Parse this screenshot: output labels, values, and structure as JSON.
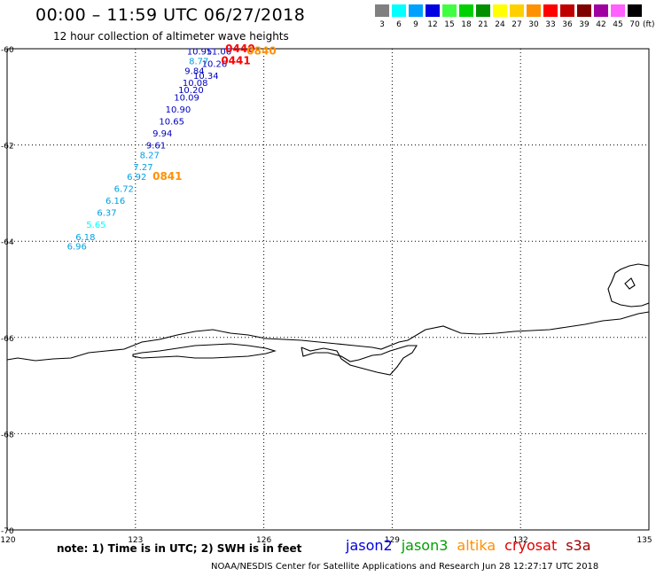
{
  "title": "00:00 – 11:59 UTC 06/27/2018",
  "subtitle": "12 hour collection of altimeter wave heights",
  "color_scale": {
    "unit": "(ft)",
    "swatches": [
      {
        "label": "3",
        "color": "#808080"
      },
      {
        "label": "6",
        "color": "#00ffff"
      },
      {
        "label": "9",
        "color": "#00a0ff"
      },
      {
        "label": "12",
        "color": "#0000e0"
      },
      {
        "label": "15",
        "color": "#40ff40"
      },
      {
        "label": "18",
        "color": "#00d000"
      },
      {
        "label": "21",
        "color": "#009000"
      },
      {
        "label": "24",
        "color": "#ffff00"
      },
      {
        "label": "27",
        "color": "#ffd000"
      },
      {
        "label": "30",
        "color": "#ff9000"
      },
      {
        "label": "33",
        "color": "#ff0000"
      },
      {
        "label": "36",
        "color": "#c00000"
      },
      {
        "label": "39",
        "color": "#800000"
      },
      {
        "label": "42",
        "color": "#a000a0"
      },
      {
        "label": "45",
        "color": "#ff60ff"
      },
      {
        "label": "70",
        "color": "#000000"
      }
    ]
  },
  "map": {
    "lon_range": [
      120,
      135
    ],
    "lat_range": [
      -70,
      -60
    ],
    "lon_labels": [
      "120",
      "123",
      "126",
      "129",
      "132",
      "135"
    ],
    "lat_labels": [
      "-60",
      "-62",
      "-64",
      "-66",
      "-68",
      "-70"
    ],
    "grid_lons": [
      123,
      126,
      129,
      132
    ],
    "grid_lats": [
      -62,
      -64,
      -66,
      -68
    ],
    "wave_heights": [
      {
        "text": "10.95",
        "lon": 124.2,
        "lat": -60.05,
        "color": "#0000c0"
      },
      {
        "text": "11.06",
        "lon": 124.65,
        "lat": -60.05,
        "color": "#0000c0"
      },
      {
        "text": "0440",
        "lon": 125.1,
        "lat": -60.0,
        "color": "#ff0000",
        "time": true
      },
      {
        "text": "0840",
        "lon": 125.6,
        "lat": -60.05,
        "color": "#ff9000",
        "time": true
      },
      {
        "text": "8.77",
        "lon": 124.25,
        "lat": -60.25,
        "color": "#00a0e0"
      },
      {
        "text": "10.26",
        "lon": 124.55,
        "lat": -60.3,
        "color": "#0000c0"
      },
      {
        "text": "0441",
        "lon": 125.0,
        "lat": -60.25,
        "color": "#ff0000",
        "time": true
      },
      {
        "text": "9.84",
        "lon": 124.15,
        "lat": -60.45,
        "color": "#0000c0"
      },
      {
        "text": "10.34",
        "lon": 124.35,
        "lat": -60.55,
        "color": "#0000c0"
      },
      {
        "text": "10.08",
        "lon": 124.1,
        "lat": -60.7,
        "color": "#0000c0"
      },
      {
        "text": "10.20",
        "lon": 124.0,
        "lat": -60.85,
        "color": "#0000c0"
      },
      {
        "text": "10.09",
        "lon": 123.9,
        "lat": -61.0,
        "color": "#0000c0"
      },
      {
        "text": "10.90",
        "lon": 123.7,
        "lat": -61.25,
        "color": "#0000c0"
      },
      {
        "text": "10.65",
        "lon": 123.55,
        "lat": -61.5,
        "color": "#0000c0"
      },
      {
        "text": "9.94",
        "lon": 123.4,
        "lat": -61.75,
        "color": "#0000c0"
      },
      {
        "text": "9.61",
        "lon": 123.25,
        "lat": -62.0,
        "color": "#0000c0"
      },
      {
        "text": "8.27",
        "lon": 123.1,
        "lat": -62.2,
        "color": "#00a0e0"
      },
      {
        "text": "7.27",
        "lon": 122.95,
        "lat": -62.45,
        "color": "#00a0e0"
      },
      {
        "text": "6.92",
        "lon": 122.8,
        "lat": -62.65,
        "color": "#00a0e0"
      },
      {
        "text": "0841",
        "lon": 123.4,
        "lat": -62.65,
        "color": "#ff9000",
        "time": true
      },
      {
        "text": "6.72",
        "lon": 122.5,
        "lat": -62.9,
        "color": "#00a0e0"
      },
      {
        "text": "6.16",
        "lon": 122.3,
        "lat": -63.15,
        "color": "#00a0e0"
      },
      {
        "text": "6.37",
        "lon": 122.1,
        "lat": -63.4,
        "color": "#00a0e0"
      },
      {
        "text": "5.65",
        "lon": 121.85,
        "lat": -63.65,
        "color": "#00ffff"
      },
      {
        "text": "6.18",
        "lon": 121.6,
        "lat": -63.9,
        "color": "#00a0e0"
      },
      {
        "text": "6.96",
        "lon": 121.4,
        "lat": -64.1,
        "color": "#00a0e0"
      }
    ]
  },
  "note": "note: 1) Time is in UTC; 2) SWH is in feet",
  "satellites": [
    {
      "name": "jason2",
      "color": "#0000e0"
    },
    {
      "name": "jason3",
      "color": "#00a000"
    },
    {
      "name": "altika",
      "color": "#ff9000"
    },
    {
      "name": "cryosat",
      "color": "#e00000"
    },
    {
      "name": "s3a",
      "color": "#a00000"
    }
  ],
  "credit": "NOAA/NESDIS Center for Satellite Applications and Research    Jun 28 12:27:17 UTC 2018"
}
